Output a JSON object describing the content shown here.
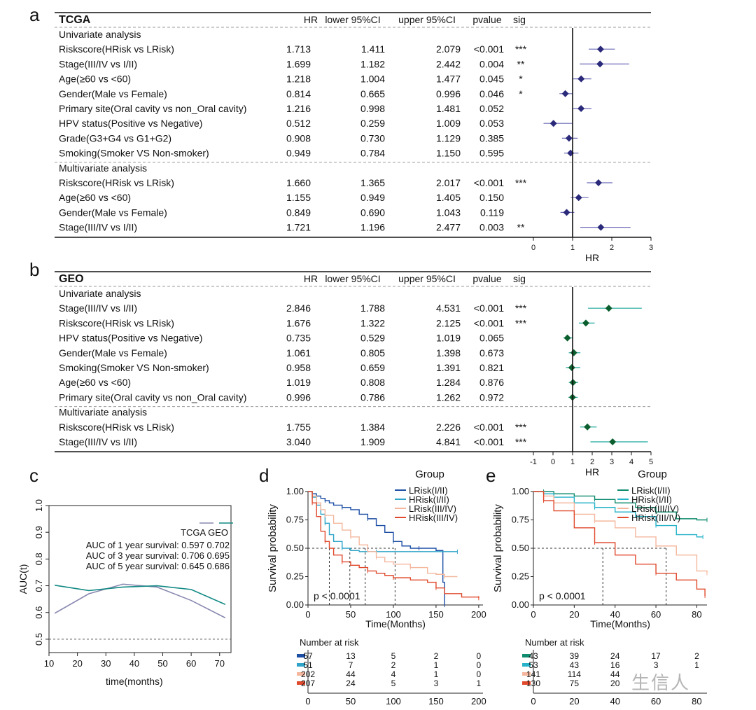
{
  "panel_letters": [
    "a",
    "b",
    "c",
    "d",
    "e"
  ],
  "watermark": "生信人",
  "colors": {
    "tcga_diamond": "#2b2a7a",
    "tcga_ci": "#6b6bb8",
    "geo_diamond": "#0b5e2e",
    "geo_ci": "#1aa79a",
    "auc_tcga": "#8888b0",
    "auc_geo": "#128a84",
    "km_lrisk_early": "#1d4fa5",
    "km_hrisk_early": "#2fa4c8",
    "km_lrisk_late": "#f4b79d",
    "km_hrisk_late": "#e0492c",
    "km_e_lrisk_early": "#0f8b6e",
    "km_e_hrisk_early": "#26b2c9"
  },
  "chart_data": [
    {
      "type": "table",
      "panel": "a",
      "dataset": "TCGA",
      "columns": [
        "HR",
        "lower 95%CI",
        "upper 95%CI",
        "pvalue",
        "sig"
      ],
      "xlabel": "HR",
      "xlim": [
        0,
        3
      ],
      "xticks": [
        0,
        1,
        2,
        3
      ],
      "reference_line": 1,
      "sections": [
        {
          "title": "Univariate analysis",
          "rows": [
            {
              "label": "Riskscore(HRisk vs LRisk)",
              "hr": 1.713,
              "lower": 1.411,
              "upper": 2.079,
              "pvalue": "<0.001",
              "sig": "***"
            },
            {
              "label": "Stage(III/IV vs I/II)",
              "hr": 1.699,
              "lower": 1.182,
              "upper": 2.442,
              "pvalue": "0.004",
              "sig": "**"
            },
            {
              "label": "Age(≥60 vs <60)",
              "hr": 1.218,
              "lower": 1.004,
              "upper": 1.477,
              "pvalue": "0.045",
              "sig": "*"
            },
            {
              "label": "Gender(Male vs Female)",
              "hr": 0.814,
              "lower": 0.665,
              "upper": 0.996,
              "pvalue": "0.046",
              "sig": "*"
            },
            {
              "label": "Primary site(Oral cavity vs non_Oral cavity)",
              "hr": 1.216,
              "lower": 0.998,
              "upper": 1.481,
              "pvalue": "0.052",
              "sig": ""
            },
            {
              "label": "HPV status(Positive vs Negative)",
              "hr": 0.512,
              "lower": 0.259,
              "upper": 1.009,
              "pvalue": "0.053",
              "sig": ""
            },
            {
              "label": "Grade(G3+G4 vs G1+G2)",
              "hr": 0.908,
              "lower": 0.73,
              "upper": 1.129,
              "pvalue": "0.385",
              "sig": ""
            },
            {
              "label": "Smoking(Smoker VS Non-smoker)",
              "hr": 0.949,
              "lower": 0.784,
              "upper": 1.15,
              "pvalue": "0.595",
              "sig": ""
            }
          ]
        },
        {
          "title": "Multivariate analysis",
          "rows": [
            {
              "label": "Riskscore(HRisk vs LRisk)",
              "hr": 1.66,
              "lower": 1.365,
              "upper": 2.017,
              "pvalue": "<0.001",
              "sig": "***"
            },
            {
              "label": "Age(≥60 vs <60)",
              "hr": 1.155,
              "lower": 0.949,
              "upper": 1.405,
              "pvalue": "0.150",
              "sig": ""
            },
            {
              "label": "Gender(Male vs Female)",
              "hr": 0.849,
              "lower": 0.69,
              "upper": 1.043,
              "pvalue": "0.119",
              "sig": ""
            },
            {
              "label": "Stage(III/IV vs I/II)",
              "hr": 1.721,
              "lower": 1.196,
              "upper": 2.477,
              "pvalue": "0.003",
              "sig": "**"
            }
          ]
        }
      ]
    },
    {
      "type": "table",
      "panel": "b",
      "dataset": "GEO",
      "columns": [
        "HR",
        "lower 95%CI",
        "upper 95%CI",
        "pvalue",
        "sig"
      ],
      "xlabel": "HR",
      "xlim": [
        -1,
        5
      ],
      "xticks": [
        -1,
        0,
        1,
        2,
        3,
        4,
        5
      ],
      "reference_line": 1,
      "sections": [
        {
          "title": "Univariate analysis",
          "rows": [
            {
              "label": "Stage(III/IV vs I/II)",
              "hr": 2.846,
              "lower": 1.788,
              "upper": 4.531,
              "pvalue": "<0.001",
              "sig": "***"
            },
            {
              "label": "Riskscore(HRisk vs LRisk)",
              "hr": 1.676,
              "lower": 1.322,
              "upper": 2.125,
              "pvalue": "<0.001",
              "sig": "***"
            },
            {
              "label": "HPV status(Positive vs Negative)",
              "hr": 0.735,
              "lower": 0.529,
              "upper": 1.019,
              "pvalue": "0.065",
              "sig": ""
            },
            {
              "label": "Gender(Male vs Female)",
              "hr": 1.061,
              "lower": 0.805,
              "upper": 1.398,
              "pvalue": "0.673",
              "sig": ""
            },
            {
              "label": "Smoking(Smoker VS Non-smoker)",
              "hr": 0.958,
              "lower": 0.659,
              "upper": 1.391,
              "pvalue": "0.821",
              "sig": ""
            },
            {
              "label": "Age(≥60 vs <60)",
              "hr": 1.019,
              "lower": 0.808,
              "upper": 1.284,
              "pvalue": "0.876",
              "sig": ""
            },
            {
              "label": "Primary site(Oral cavity vs non_Oral cavity)",
              "hr": 0.996,
              "lower": 0.786,
              "upper": 1.262,
              "pvalue": "0.972",
              "sig": ""
            }
          ]
        },
        {
          "title": "Multivariate analysis",
          "rows": [
            {
              "label": "Riskscore(HRisk vs LRisk)",
              "hr": 1.755,
              "lower": 1.384,
              "upper": 2.226,
              "pvalue": "<0.001",
              "sig": "***"
            },
            {
              "label": "Stage(III/IV vs I/II)",
              "hr": 3.04,
              "lower": 1.909,
              "upper": 4.841,
              "pvalue": "<0.001",
              "sig": "***"
            }
          ]
        }
      ]
    },
    {
      "type": "line",
      "panel": "c",
      "xlabel": "time(months)",
      "ylabel": "AUC(t)",
      "xlim": [
        10,
        74
      ],
      "ylim": [
        0.45,
        1.0
      ],
      "xticks": [
        10,
        20,
        30,
        40,
        50,
        60,
        70
      ],
      "yticks": [
        0.5,
        0.6,
        0.7,
        0.8,
        0.9,
        1.0
      ],
      "reference_line": 0.5,
      "legend_title": "TCGA GEO",
      "legend_lines": [
        "AUC of 1 year survival: 0.597 0.702",
        "AUC of 3 year survival: 0.706 0.695",
        "AUC of 5 year survival: 0.645 0.686"
      ],
      "series": [
        {
          "values": [
            0.597,
            0.67,
            0.706,
            0.695,
            0.645,
            0.58
          ],
          "x": [
            12,
            24,
            36,
            48,
            60,
            72
          ]
        },
        {
          "values": [
            0.702,
            0.682,
            0.695,
            0.7,
            0.686,
            0.63
          ],
          "x": [
            12,
            24,
            36,
            48,
            60,
            72
          ]
        }
      ]
    },
    {
      "type": "line",
      "panel": "d",
      "xlabel": "Time(Months)",
      "ylabel": "Survival probability",
      "xlim": [
        0,
        205
      ],
      "ylim": [
        0,
        1
      ],
      "xticks": [
        0,
        50,
        100,
        150,
        200
      ],
      "yticks": [
        0.0,
        0.25,
        0.5,
        0.75,
        1.0
      ],
      "pvalue_text": "p < 0.0001",
      "legend_title": "Group",
      "median_times": [
        25,
        49,
        67,
        102
      ],
      "series": [
        {
          "name": "LRisk(I/II)",
          "x": [
            0,
            5,
            10,
            15,
            20,
            25,
            30,
            40,
            50,
            60,
            70,
            80,
            90,
            100,
            110,
            120,
            130,
            150,
            158,
            160
          ],
          "values": [
            1.0,
            0.98,
            0.96,
            0.94,
            0.92,
            0.9,
            0.88,
            0.86,
            0.84,
            0.8,
            0.76,
            0.7,
            0.64,
            0.56,
            0.52,
            0.5,
            0.5,
            0.48,
            0.2,
            0.0
          ]
        },
        {
          "name": "HRisk(I/II)",
          "x": [
            0,
            5,
            10,
            15,
            20,
            25,
            30,
            40,
            50,
            60,
            80,
            100,
            150,
            175
          ],
          "values": [
            1.0,
            0.95,
            0.88,
            0.8,
            0.72,
            0.62,
            0.56,
            0.5,
            0.48,
            0.47,
            0.47,
            0.47,
            0.47,
            0.47
          ]
        },
        {
          "name": "LRisk(III/IV)",
          "x": [
            0,
            5,
            10,
            15,
            20,
            30,
            40,
            50,
            60,
            70,
            80,
            90,
            100,
            120,
            140,
            150,
            160,
            170,
            175
          ],
          "values": [
            1.0,
            0.96,
            0.9,
            0.84,
            0.79,
            0.72,
            0.66,
            0.6,
            0.53,
            0.47,
            0.42,
            0.38,
            0.36,
            0.33,
            0.28,
            0.27,
            0.25,
            0.25,
            0.25
          ]
        },
        {
          "name": "HRisk(III/IV)",
          "x": [
            0,
            5,
            10,
            15,
            20,
            25,
            30,
            40,
            50,
            60,
            70,
            80,
            90,
            100,
            120,
            140,
            150,
            160,
            180,
            200
          ],
          "values": [
            1.0,
            0.9,
            0.78,
            0.65,
            0.56,
            0.5,
            0.44,
            0.38,
            0.35,
            0.33,
            0.3,
            0.28,
            0.26,
            0.24,
            0.22,
            0.2,
            0.15,
            0.1,
            0.07,
            0.06
          ]
        }
      ],
      "risk_table": {
        "title": "Number at risk",
        "xticks": [
          0,
          50,
          100,
          150,
          200
        ],
        "rows": [
          [
            "57",
            "13",
            "5",
            "2",
            "0"
          ],
          [
            "51",
            "7",
            "2",
            "1",
            "0"
          ],
          [
            "202",
            "44",
            "4",
            "1",
            "0"
          ],
          [
            "207",
            "24",
            "5",
            "3",
            "1"
          ]
        ]
      }
    },
    {
      "type": "line",
      "panel": "e",
      "xlabel": "Time(Months)",
      "ylabel": "Survival probability",
      "xlim": [
        0,
        85
      ],
      "ylim": [
        0,
        1
      ],
      "xticks": [
        0,
        20,
        40,
        60,
        80
      ],
      "yticks": [
        0.0,
        0.25,
        0.5,
        0.75,
        1.0
      ],
      "pvalue_text": "p < 0.0001",
      "legend_title": "Group",
      "median_times": [
        34,
        65
      ],
      "series": [
        {
          "name": "LRisk(I/II)",
          "x": [
            0,
            5,
            10,
            20,
            30,
            40,
            50,
            60,
            70,
            80,
            85
          ],
          "values": [
            1.0,
            1.0,
            0.98,
            0.96,
            0.93,
            0.9,
            0.86,
            0.82,
            0.76,
            0.75,
            0.75
          ]
        },
        {
          "name": "HRisk(I/II)",
          "x": [
            0,
            5,
            10,
            20,
            30,
            40,
            50,
            60,
            70,
            80,
            83
          ],
          "values": [
            1.0,
            0.98,
            0.95,
            0.9,
            0.86,
            0.82,
            0.78,
            0.7,
            0.62,
            0.6,
            0.6
          ]
        },
        {
          "name": "LRisk(III/IV)",
          "x": [
            0,
            5,
            10,
            20,
            30,
            40,
            50,
            60,
            70,
            80,
            85
          ],
          "values": [
            1.0,
            0.96,
            0.9,
            0.8,
            0.74,
            0.68,
            0.6,
            0.52,
            0.44,
            0.3,
            0.28
          ]
        },
        {
          "name": "HRisk(III/IV)",
          "x": [
            0,
            5,
            10,
            20,
            30,
            40,
            50,
            60,
            70,
            80,
            84
          ],
          "values": [
            1.0,
            0.92,
            0.83,
            0.68,
            0.55,
            0.44,
            0.36,
            0.28,
            0.22,
            0.14,
            0.08
          ]
        }
      ],
      "risk_table": {
        "title": "Number at risk",
        "xticks": [
          0,
          20,
          40,
          60,
          80
        ],
        "rows": [
          [
            "43",
            "39",
            "24",
            "17",
            "2"
          ],
          [
            "53",
            "43",
            "16",
            "3",
            "1"
          ],
          [
            "141",
            "114",
            "44",
            "",
            ""
          ],
          [
            "130",
            "75",
            "20",
            "",
            ""
          ]
        ]
      }
    }
  ]
}
